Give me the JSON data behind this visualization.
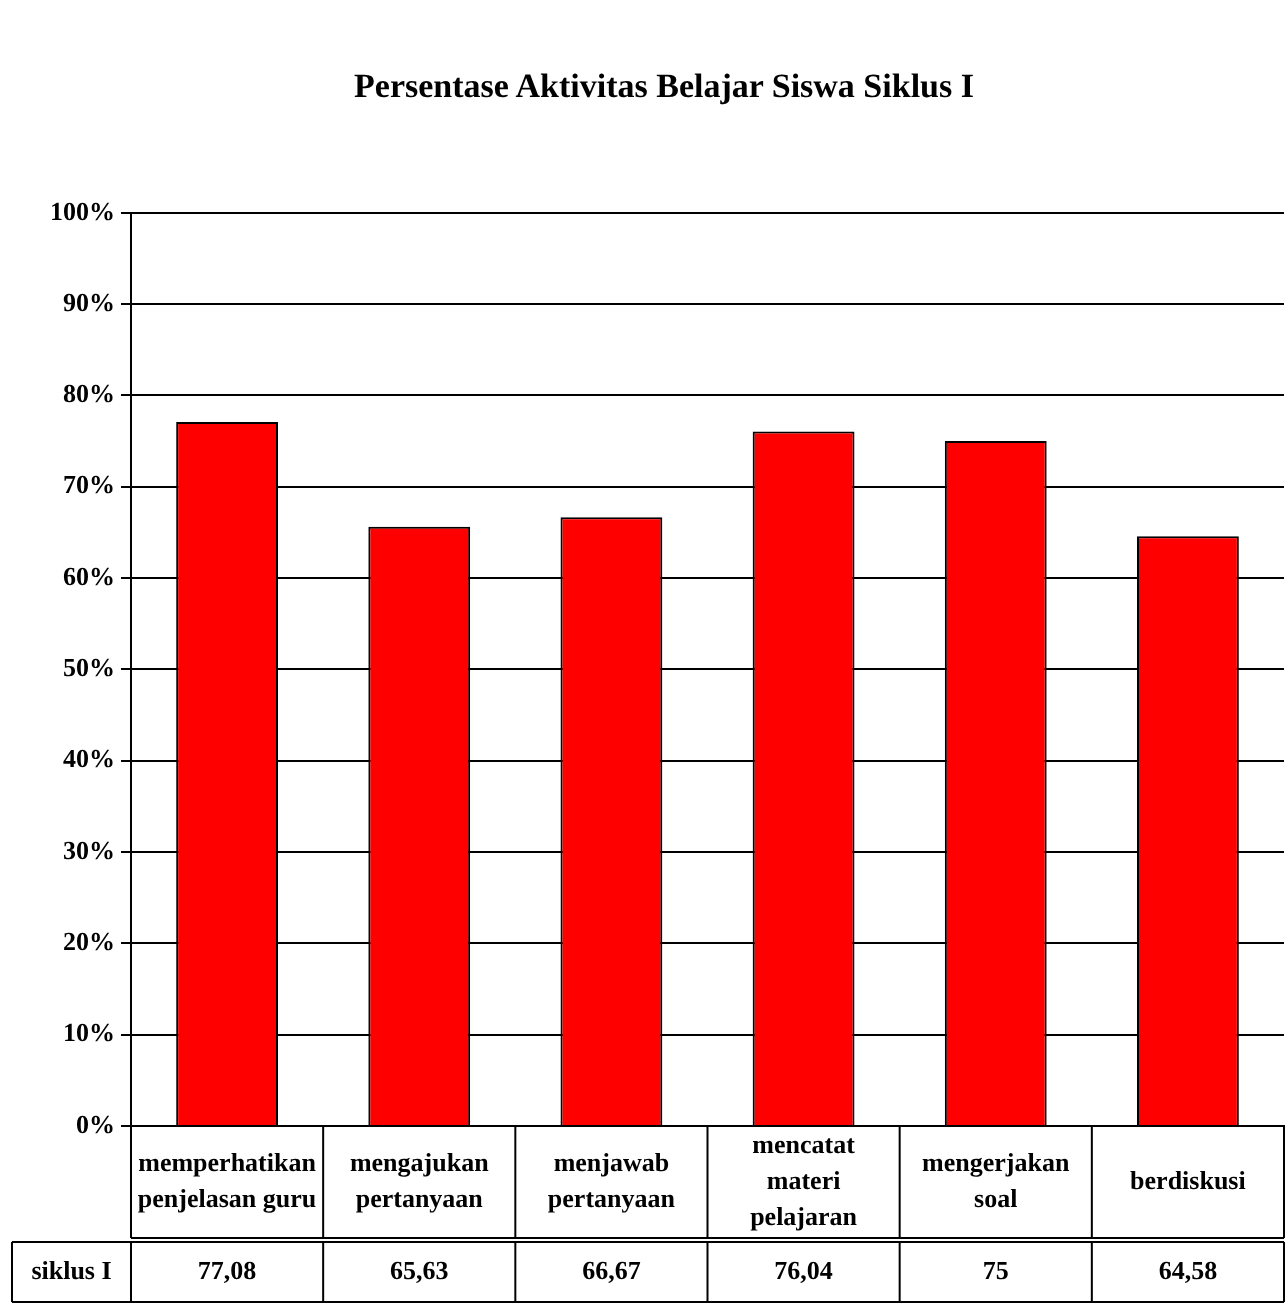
{
  "chart_data": {
    "type": "bar",
    "title": "Persentase Aktivitas Belajar Siswa Siklus I",
    "categories": [
      "memperhatikan penjelasan guru",
      "mengajukan pertanyaan",
      "menjawab pertanyaan",
      "mencatat materi pelajaran",
      "mengerjakan soal",
      "berdiskusi"
    ],
    "series": [
      {
        "name": "siklus I",
        "color": "#ff0000",
        "values": [
          77.08,
          65.63,
          66.67,
          76.04,
          75,
          64.58
        ],
        "value_labels": [
          "77,08",
          "65,63",
          "66,67",
          "76,04",
          "75",
          "64,58"
        ]
      }
    ],
    "ylim": [
      0,
      100
    ],
    "yticks": [
      {
        "value": 0,
        "label": "0%"
      },
      {
        "value": 10,
        "label": "10%"
      },
      {
        "value": 20,
        "label": "20%"
      },
      {
        "value": 30,
        "label": "30%"
      },
      {
        "value": 40,
        "label": "40%"
      },
      {
        "value": 50,
        "label": "50%"
      },
      {
        "value": 60,
        "label": "60%"
      },
      {
        "value": 70,
        "label": "70%"
      },
      {
        "value": 80,
        "label": "80%"
      },
      {
        "value": 90,
        "label": "90%"
      },
      {
        "value": 100,
        "label": "100%"
      }
    ],
    "grid": "y",
    "legend": false
  }
}
